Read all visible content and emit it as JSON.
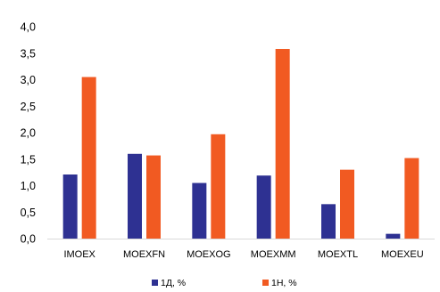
{
  "chart_data": {
    "type": "bar",
    "title": "",
    "xlabel": "",
    "ylabel": "",
    "categories": [
      "IMOEX",
      "MOEXFN",
      "MOEXOG",
      "MOEXMM",
      "MOEXTL",
      "MOEXEU"
    ],
    "series": [
      {
        "name": "1Д, %",
        "color": "#2e3192",
        "values": [
          1.21,
          1.6,
          1.05,
          1.19,
          0.65,
          0.09
        ]
      },
      {
        "name": "1Н, %",
        "color": "#f15a22",
        "values": [
          3.05,
          1.57,
          1.97,
          3.58,
          1.3,
          1.52
        ]
      }
    ],
    "ylim": [
      0,
      4.0
    ],
    "yticks": [
      "0,0",
      "0,5",
      "1,0",
      "1,5",
      "2,0",
      "2,5",
      "3,0",
      "3,5",
      "4,0"
    ],
    "grid": false,
    "legend": "bottom-center"
  }
}
